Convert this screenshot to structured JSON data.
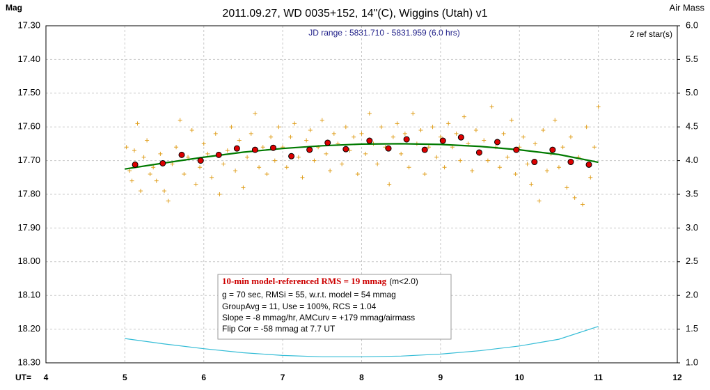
{
  "chart_data": {
    "type": "scatter",
    "title": "2011.09.27, WD 0035+152, 14\"(C), Wiggins (Utah)  v1",
    "subtitle": "JD range : 5831.710 - 5831.959 (6.0 hrs)",
    "note": "2 ref star(s)",
    "ylabel": "Mag",
    "y2label": "Air Mass",
    "xlabel": "UT=",
    "xlim": [
      4,
      12
    ],
    "xticks": [
      4,
      5,
      6,
      7,
      8,
      9,
      10,
      11,
      12
    ],
    "ylim": [
      17.3,
      18.3
    ],
    "y_inverted": true,
    "yticks": [
      {
        "value": 17.3,
        "label": "17.30"
      },
      {
        "value": 17.4,
        "label": "17.40"
      },
      {
        "value": 17.5,
        "label": "17.50"
      },
      {
        "value": 17.6,
        "label": "17.60"
      },
      {
        "value": 17.7,
        "label": "17.70"
      },
      {
        "value": 17.8,
        "label": "17.80"
      },
      {
        "value": 17.9,
        "label": "17.90"
      },
      {
        "value": 18.0,
        "label": "18.00"
      },
      {
        "value": 18.1,
        "label": "18.10"
      },
      {
        "value": 18.2,
        "label": "18.20"
      },
      {
        "value": 18.3,
        "label": "18.30"
      }
    ],
    "y2lim": [
      1,
      6
    ],
    "y2ticks": [
      {
        "value": 1,
        "label": "1.0"
      },
      {
        "value": 1.5,
        "label": "1.5"
      },
      {
        "value": 2,
        "label": "2.0"
      },
      {
        "value": 2.5,
        "label": "2.5"
      },
      {
        "value": 3,
        "label": "3.0"
      },
      {
        "value": 3.5,
        "label": "3.5"
      },
      {
        "value": 4,
        "label": "4.0"
      },
      {
        "value": 4.5,
        "label": "4.5"
      },
      {
        "value": 5,
        "label": "5.0"
      },
      {
        "value": 5.5,
        "label": "5.5"
      },
      {
        "value": 6,
        "label": "6.0"
      }
    ],
    "grid": true,
    "series": [
      {
        "type": "scatter",
        "marker": "plus",
        "color": "#e0a020",
        "x": [
          5.02,
          5.06,
          5.09,
          5.12,
          5.16,
          5.2,
          5.24,
          5.28,
          5.32,
          5.36,
          5.4,
          5.45,
          5.5,
          5.55,
          5.6,
          5.65,
          5.7,
          5.75,
          5.8,
          5.85,
          5.9,
          5.95,
          6.0,
          6.05,
          6.1,
          6.15,
          6.2,
          6.25,
          6.3,
          6.35,
          6.4,
          6.45,
          6.5,
          6.55,
          6.6,
          6.65,
          6.7,
          6.75,
          6.8,
          6.85,
          6.9,
          6.95,
          7.0,
          7.05,
          7.1,
          7.15,
          7.2,
          7.25,
          7.3,
          7.35,
          7.4,
          7.45,
          7.5,
          7.55,
          7.6,
          7.65,
          7.7,
          7.75,
          7.8,
          7.85,
          7.9,
          7.95,
          8.0,
          8.05,
          8.1,
          8.15,
          8.2,
          8.25,
          8.3,
          8.35,
          8.4,
          8.45,
          8.5,
          8.55,
          8.6,
          8.65,
          8.7,
          8.75,
          8.8,
          8.85,
          8.9,
          8.95,
          9.0,
          9.05,
          9.1,
          9.15,
          9.2,
          9.25,
          9.3,
          9.35,
          9.4,
          9.45,
          9.5,
          9.55,
          9.6,
          9.65,
          9.7,
          9.75,
          9.8,
          9.85,
          9.9,
          9.95,
          10.0,
          10.05,
          10.1,
          10.15,
          10.2,
          10.25,
          10.3,
          10.35,
          10.4,
          10.45,
          10.5,
          10.55,
          10.6,
          10.65,
          10.7,
          10.75,
          10.8,
          10.85,
          10.9,
          10.95,
          11.0
        ],
        "values": [
          17.66,
          17.73,
          17.76,
          17.67,
          17.59,
          17.79,
          17.69,
          17.64,
          17.74,
          17.72,
          17.76,
          17.68,
          17.79,
          17.82,
          17.71,
          17.66,
          17.58,
          17.74,
          17.69,
          17.61,
          17.77,
          17.72,
          17.65,
          17.68,
          17.75,
          17.62,
          17.8,
          17.71,
          17.67,
          17.6,
          17.73,
          17.64,
          17.78,
          17.69,
          17.62,
          17.56,
          17.72,
          17.66,
          17.74,
          17.63,
          17.7,
          17.6,
          17.66,
          17.72,
          17.63,
          17.59,
          17.69,
          17.75,
          17.64,
          17.61,
          17.7,
          17.66,
          17.58,
          17.68,
          17.73,
          17.62,
          17.65,
          17.71,
          17.6,
          17.67,
          17.63,
          17.74,
          17.62,
          17.68,
          17.56,
          17.65,
          17.71,
          17.6,
          17.66,
          17.77,
          17.63,
          17.59,
          17.68,
          17.62,
          17.72,
          17.56,
          17.65,
          17.61,
          17.74,
          17.66,
          17.6,
          17.69,
          17.63,
          17.72,
          17.59,
          17.66,
          17.62,
          17.7,
          17.57,
          17.65,
          17.73,
          17.61,
          17.68,
          17.64,
          17.7,
          17.54,
          17.66,
          17.72,
          17.62,
          17.69,
          17.58,
          17.74,
          17.66,
          17.63,
          17.71,
          17.77,
          17.65,
          17.82,
          17.61,
          17.73,
          17.68,
          17.58,
          17.72,
          17.66,
          17.78,
          17.63,
          17.81,
          17.69,
          17.83,
          17.6,
          17.75,
          17.66,
          17.54
        ]
      },
      {
        "type": "scatter",
        "marker": "circle",
        "color": "#dd0000",
        "x": [
          5.13,
          5.48,
          5.72,
          5.96,
          6.19,
          6.42,
          6.65,
          6.88,
          7.11,
          7.34,
          7.57,
          7.8,
          8.1,
          8.34,
          8.57,
          8.8,
          9.03,
          9.26,
          9.49,
          9.72,
          9.96,
          10.19,
          10.42,
          10.65,
          10.88
        ],
        "values": [
          17.712,
          17.708,
          17.683,
          17.7,
          17.683,
          17.664,
          17.668,
          17.662,
          17.687,
          17.668,
          17.647,
          17.666,
          17.641,
          17.664,
          17.637,
          17.668,
          17.641,
          17.631,
          17.676,
          17.645,
          17.668,
          17.704,
          17.668,
          17.704,
          17.712
        ]
      },
      {
        "type": "line",
        "color": "#007a00",
        "x": [
          5,
          5.5,
          6,
          6.5,
          7,
          7.5,
          8,
          8.5,
          9,
          9.5,
          10,
          10.5,
          11
        ],
        "values": [
          17.725,
          17.707,
          17.69,
          17.675,
          17.664,
          17.656,
          17.651,
          17.65,
          17.652,
          17.658,
          17.668,
          17.682,
          17.705
        ]
      },
      {
        "type": "line",
        "color": "#33bcd6",
        "axis": "y2",
        "x": [
          5,
          5.5,
          6,
          6.5,
          7,
          7.5,
          8,
          8.5,
          9,
          9.5,
          10,
          10.5,
          11
        ],
        "values": [
          1.36,
          1.28,
          1.21,
          1.15,
          1.11,
          1.09,
          1.09,
          1.1,
          1.13,
          1.18,
          1.25,
          1.35,
          1.54
        ]
      }
    ],
    "stats_title": "10-min model-referenced RMS = 19 mmag",
    "stats_title_note": "(m<2.0)",
    "stats_lines": [
      "g = 70 sec, RMSi = 55, w.r.t. model = 54 mmag",
      "GroupAvg = 11, Use = 100%, RCS = 1.04",
      "Slope = -8 mmag/hr, AMCurv = +179 mmag/airmass",
      "Flip Cor = -58 mmag at 7.7 UT"
    ]
  }
}
